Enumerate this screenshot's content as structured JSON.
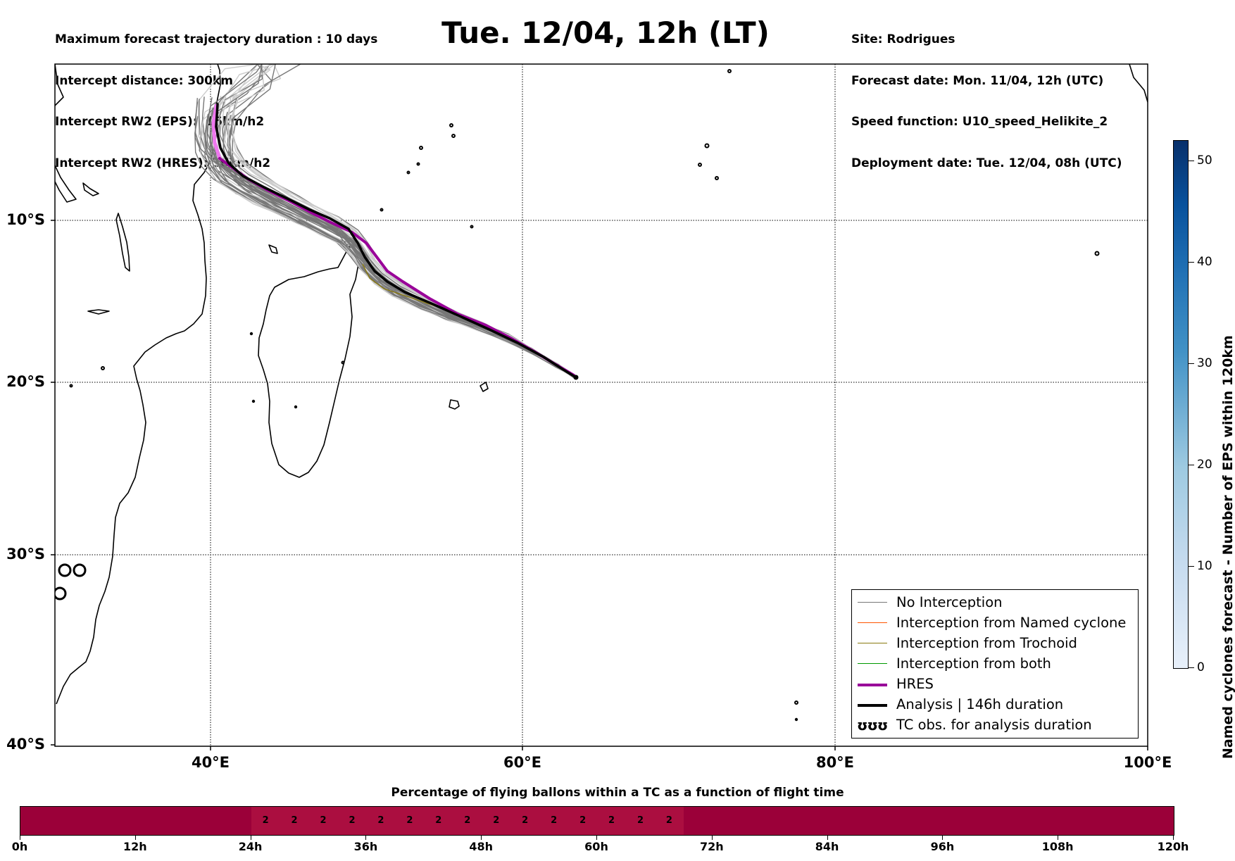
{
  "header": {
    "left_lines": [
      "Maximum forecast trajectory duration : 10 days",
      "Intercept distance: 300km",
      "Intercept RW2 (EPS):  15km/h2",
      "Intercept RW2 (HRES): 30km/h2"
    ],
    "title": "Tue. 12/04, 12h (LT)",
    "right_lines": [
      "Site: Rodrigues",
      "Forecast date: Mon. 11/04, 12h (UTC)",
      "Speed function: U10_speed_Helikite_2",
      "Deployment date: Tue. 12/04, 08h (UTC)"
    ]
  },
  "map": {
    "lon_labels": [
      "40°E",
      "60°E",
      "80°E",
      "100°E"
    ],
    "lat_labels": [
      "10°S",
      "20°S",
      "30°S",
      "40°S"
    ],
    "release_site": {
      "lon": 63.4,
      "lat": -19.7
    },
    "colors": {
      "no_interception": "#777777",
      "named_cyclone": "#ff5500",
      "trochoid": "#8a7a10",
      "both": "#009900",
      "hres": "#990099",
      "analysis": "#000000",
      "hres_light": "#ee77ee"
    }
  },
  "legend": {
    "items": [
      {
        "label": "No Interception"
      },
      {
        "label": "Interception from Named cyclone"
      },
      {
        "label": "Interception from Trochoid"
      },
      {
        "label": "Interception from both"
      },
      {
        "label": "HRES"
      },
      {
        "label": "Analysis | 146h duration"
      },
      {
        "label": "TC obs. for analysis duration",
        "glyph": "ʊʊʊ"
      }
    ]
  },
  "colorbar": {
    "title": "Named cyclones forecast - Number of EPS within 120km",
    "ticks": [
      "0",
      "10",
      "20",
      "30",
      "40",
      "50"
    ],
    "range": [
      0,
      52
    ]
  },
  "timeline": {
    "title": "Percentage of flying ballons within a TC as a function of flight time",
    "ticks": [
      "0h",
      "12h",
      "24h",
      "36h",
      "48h",
      "60h",
      "72h",
      "84h",
      "96h",
      "108h",
      "120h"
    ],
    "cells": [
      "",
      "",
      "",
      "",
      "",
      "",
      "",
      "",
      "2",
      "2",
      "2",
      "2",
      "2",
      "2",
      "2",
      "2",
      "2",
      "2",
      "2",
      "2",
      "2",
      "2",
      "2",
      "",
      "",
      "",
      "",
      "",
      "",
      "",
      "",
      "",
      "",
      "",
      "",
      "",
      "",
      "",
      "",
      ""
    ]
  }
}
